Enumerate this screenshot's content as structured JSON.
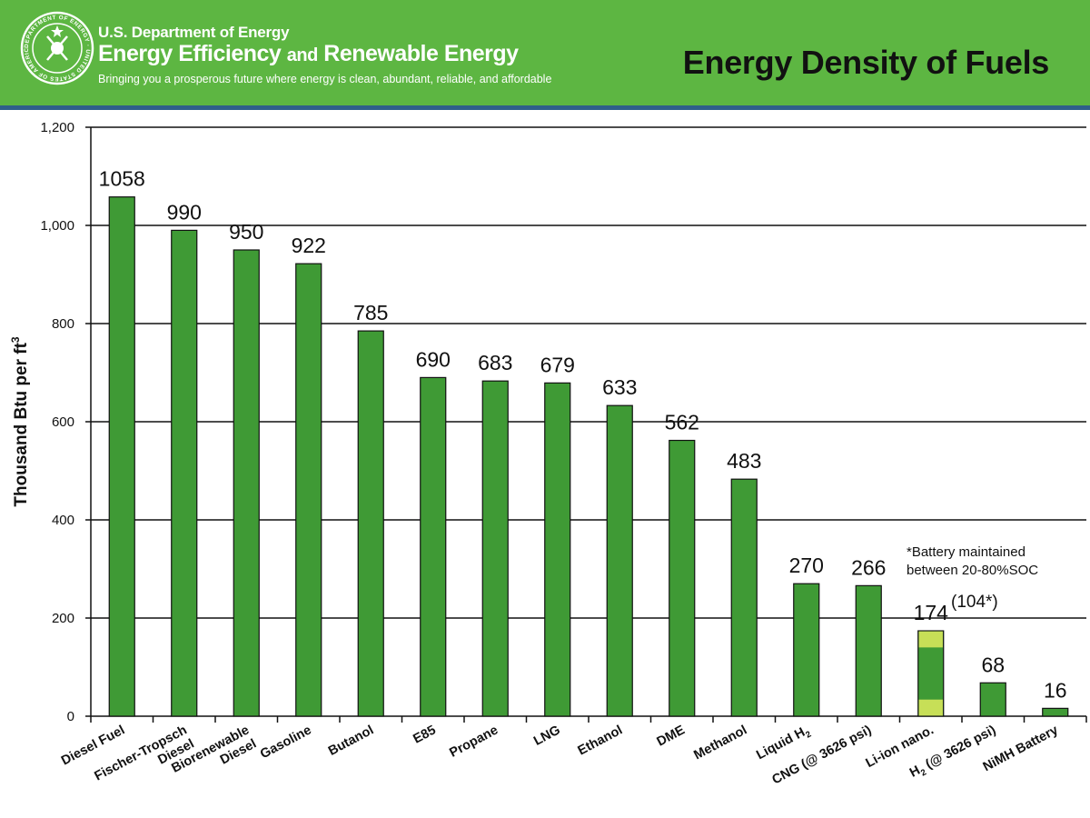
{
  "header": {
    "agency": "U.S. Department of Energy",
    "office_part1": "Energy Efficiency",
    "office_part2": "and",
    "office_part3": "Renewable Energy",
    "tagline": "Bringing you a prosperous future where energy is clean, abundant, reliable, and affordable",
    "seal_text": "DEPARTMENT OF ENERGY · UNITED STATES OF AMERICA"
  },
  "colors": {
    "banner": "#5db642",
    "banner_rule": "#2f5f8a",
    "bar": "#3f9a35",
    "bar_highlight": "#c7df57"
  },
  "chart_data": {
    "type": "bar",
    "title": "Energy Density of Fuels",
    "ylabel": "Thousand Btu per ft",
    "ylabel_superscript": "3",
    "xlabel": "",
    "ylim": [
      0,
      1200
    ],
    "yticks": [
      0,
      200,
      400,
      600,
      800,
      1000,
      1200
    ],
    "ytick_labels": [
      "0",
      "200",
      "400",
      "600",
      "800",
      "1,000",
      "1,200"
    ],
    "grid": true,
    "categories": [
      {
        "label": "Diesel Fuel",
        "lines": [
          "Diesel Fuel"
        ]
      },
      {
        "label": "Fischer-Tropsch Diesel",
        "lines": [
          "Fischer-Tropsch",
          "Diesel"
        ]
      },
      {
        "label": "Biorenewable Diesel",
        "lines": [
          "Biorenewable",
          "Diesel"
        ]
      },
      {
        "label": "Gasoline",
        "lines": [
          "Gasoline"
        ]
      },
      {
        "label": "Butanol",
        "lines": [
          "Butanol"
        ]
      },
      {
        "label": "E85",
        "lines": [
          "E85"
        ]
      },
      {
        "label": "Propane",
        "lines": [
          "Propane"
        ]
      },
      {
        "label": "LNG",
        "lines": [
          "LNG"
        ]
      },
      {
        "label": "Ethanol",
        "lines": [
          "Ethanol"
        ]
      },
      {
        "label": "DME",
        "lines": [
          "DME"
        ]
      },
      {
        "label": "Methanol",
        "lines": [
          "Methanol"
        ]
      },
      {
        "label": "Liquid H2",
        "lines": [
          "Liquid H"
        ],
        "subscript": "2"
      },
      {
        "label": "CNG (@ 3626 psi)",
        "lines": [
          "CNG (@ 3626 psi)"
        ]
      },
      {
        "label": "Li-ion nano.",
        "lines": [
          "Li-ion nano."
        ]
      },
      {
        "label": "H2 (@ 3626 psi)",
        "lines": [
          "H",
          "(@ 3626 psi)"
        ],
        "subscript": "2"
      },
      {
        "label": "NiMH Battery",
        "lines": [
          "NiMH Battery"
        ]
      }
    ],
    "values": [
      1058,
      990,
      950,
      922,
      785,
      690,
      683,
      679,
      633,
      562,
      483,
      270,
      266,
      174,
      68,
      16
    ],
    "data_labels": [
      "1058",
      "990",
      "950",
      "922",
      "785",
      "690",
      "683",
      "679",
      "633",
      "562",
      "483",
      "270",
      "266",
      "174",
      "68",
      "16"
    ],
    "special": {
      "category": "Li-ion nano.",
      "maintained_value": 104,
      "maintained_label": "(104*)",
      "highlight_bands": [
        [
          0,
          35
        ],
        [
          139,
          174
        ]
      ]
    },
    "annotations": [
      {
        "text_lines": [
          "*Battery maintained",
          "between 20-80%SOC"
        ],
        "near": "Li-ion nano."
      }
    ]
  }
}
